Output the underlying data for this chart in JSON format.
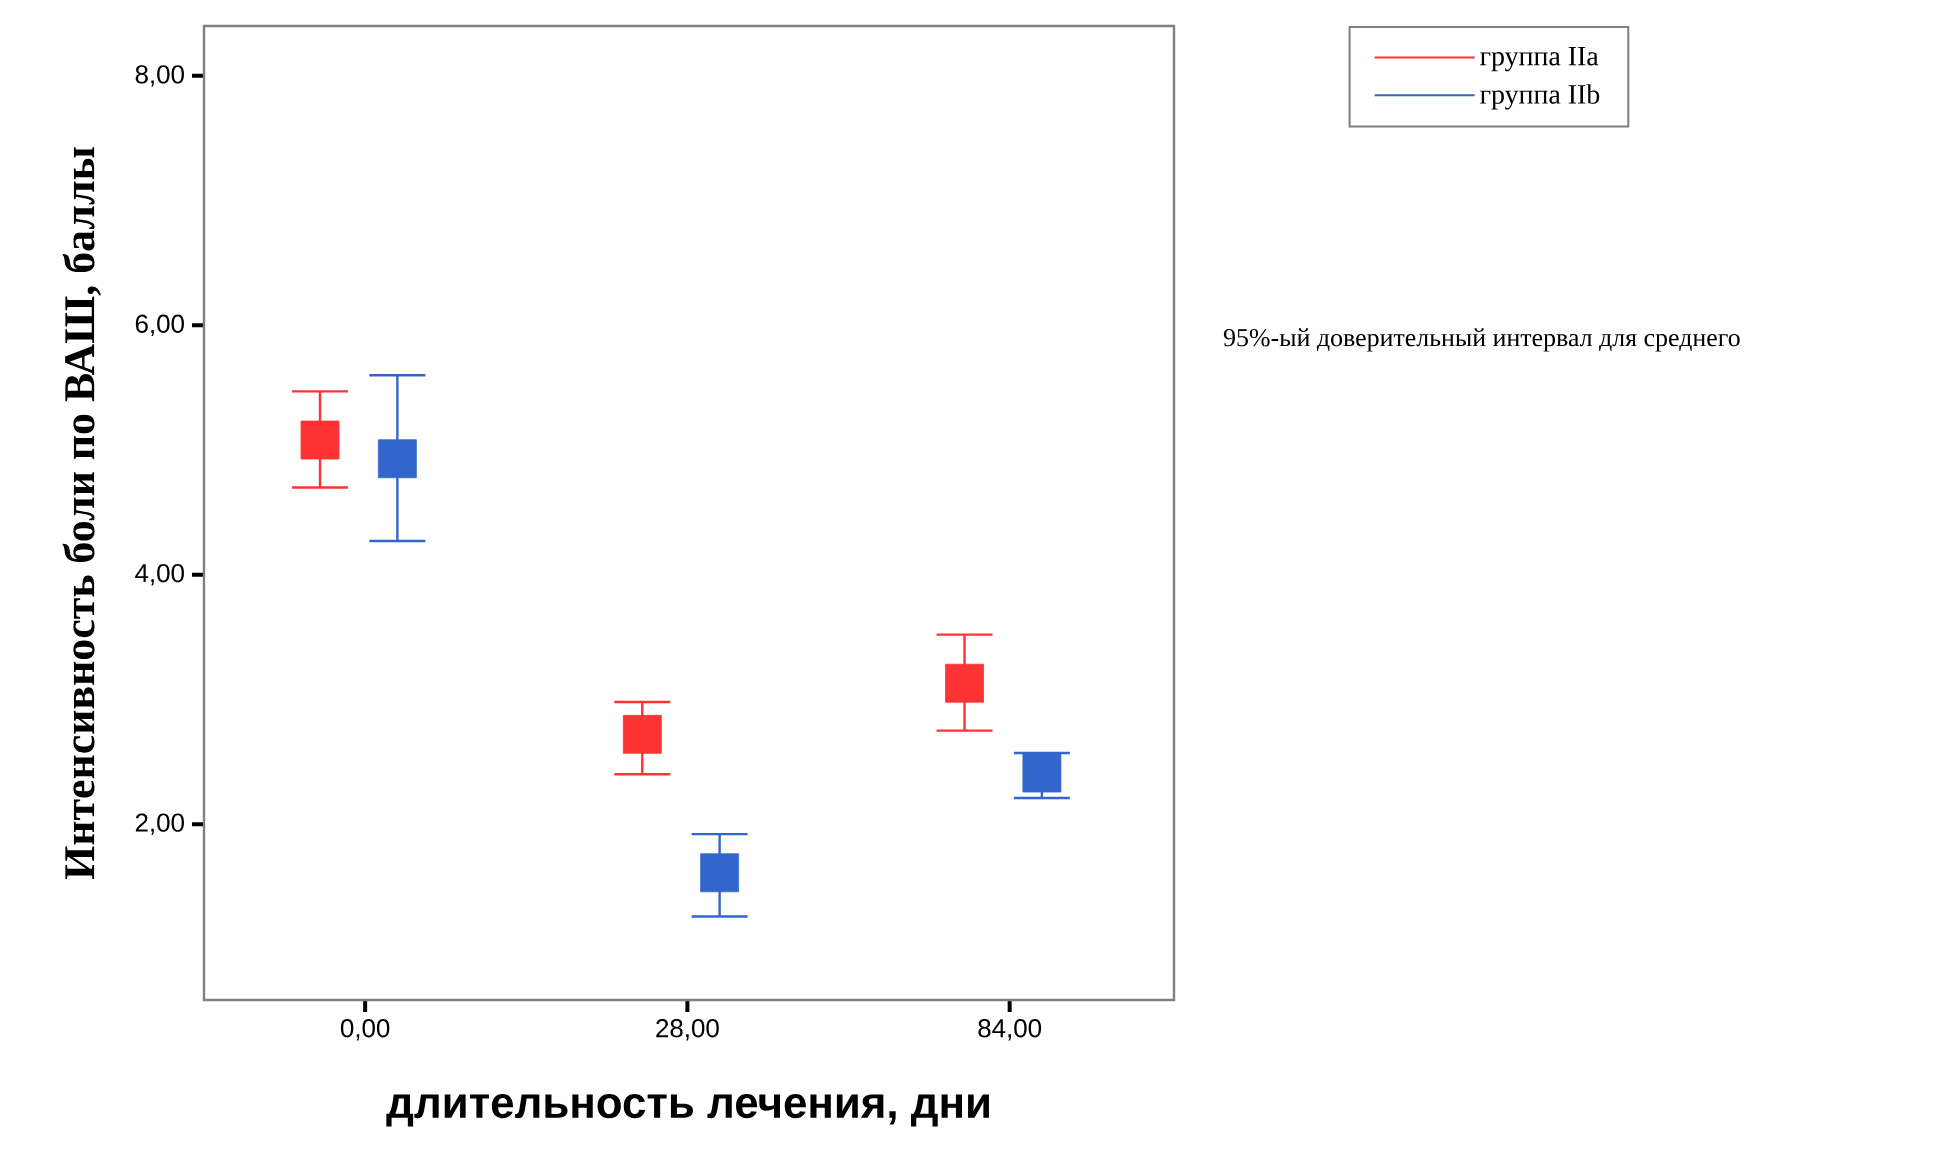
{
  "chart_data": {
    "type": "scatter",
    "xlabel": "длительность лечения, дни",
    "ylabel": "Интенсивность боли по ВАШ, баллы",
    "categories": [
      "0,00",
      "28,00",
      "84,00"
    ],
    "ylim": [
      0.59,
      8.4
    ],
    "yticks": [
      {
        "value": 2,
        "label": "2,00"
      },
      {
        "value": 4,
        "label": "4,00"
      },
      {
        "value": 6,
        "label": "6,00"
      },
      {
        "value": 8,
        "label": "8,00"
      }
    ],
    "marker": "square",
    "grid": false,
    "legend": "top right",
    "annotations": [
      "95%-ый доверительный интервал для среднего"
    ],
    "series": [
      {
        "name": "группа IIa",
        "color": "#ff3333",
        "values": [
          5.08,
          2.72,
          3.13
        ],
        "errors": [
          [
            4.7,
            5.47
          ],
          [
            2.4,
            2.98
          ],
          [
            2.75,
            3.52
          ]
        ]
      },
      {
        "name": "группа IIb",
        "color": "#3366cc",
        "values": [
          4.93,
          1.61,
          2.41
        ],
        "errors": [
          [
            4.27,
            5.6
          ],
          [
            1.26,
            1.92
          ],
          [
            2.21,
            2.57
          ]
        ]
      }
    ]
  }
}
